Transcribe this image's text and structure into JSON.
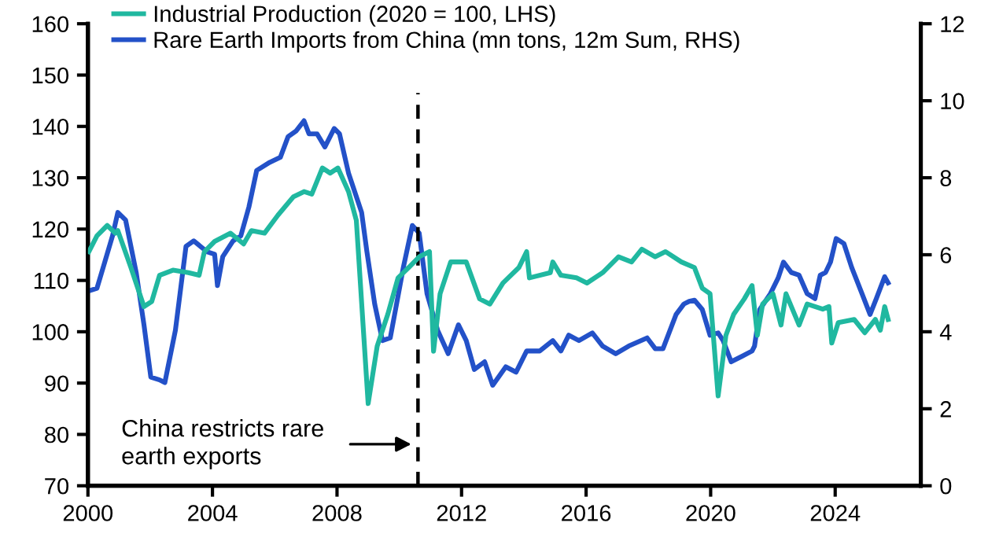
{
  "chart_data": {
    "type": "line",
    "legend": "top left",
    "grid": false,
    "line_style": "solid",
    "marker": "none",
    "xlim": [
      2000,
      2026.75
    ],
    "xticks": [
      2000,
      2004,
      2008,
      2012,
      2016,
      2020,
      2024
    ],
    "ylim": [
      70,
      160
    ],
    "yticks": [
      70,
      80,
      90,
      100,
      110,
      120,
      130,
      140,
      150,
      160
    ],
    "y2lim": [
      0,
      12
    ],
    "y2ticks": [
      0,
      2,
      4,
      6,
      8,
      10,
      12
    ],
    "ref_lines": [
      {
        "axis": "x",
        "value": 2010.6,
        "color": "#000000",
        "line_style": "dashed"
      }
    ],
    "annotations": [
      "China restricts rare\nearth exports"
    ],
    "series": [
      {
        "name": "Industrial Production (2020 = 100, LHS)",
        "color": "#20b8a0",
        "x": [
          2000.03,
          2000.29,
          2000.62,
          2000.88,
          2000.96,
          2001.38,
          2001.8,
          2002.05,
          2002.3,
          2002.73,
          2003.23,
          2003.57,
          2003.74,
          2004.07,
          2004.58,
          2005.0,
          2005.25,
          2005.67,
          2006.1,
          2006.6,
          2006.94,
          2007.19,
          2007.53,
          2007.78,
          2008.03,
          2008.37,
          2008.62,
          2009.0,
          2009.29,
          2009.63,
          2009.96,
          2010.3,
          2010.64,
          2010.97,
          2011.1,
          2011.31,
          2011.65,
          2012.15,
          2012.58,
          2012.91,
          2013.33,
          2013.84,
          2014.09,
          2014.18,
          2014.85,
          2014.93,
          2015.19,
          2015.69,
          2016.03,
          2016.53,
          2017.04,
          2017.46,
          2017.79,
          2018.22,
          2018.55,
          2019.06,
          2019.48,
          2019.73,
          2019.98,
          2020.24,
          2020.49,
          2020.74,
          2021.08,
          2021.33,
          2021.5,
          2021.67,
          2022.0,
          2022.26,
          2022.42,
          2022.84,
          2023.1,
          2023.6,
          2023.8,
          2023.89,
          2024.1,
          2024.61,
          2024.95,
          2025.29,
          2025.45,
          2025.59,
          2025.7
        ],
        "values": [
          115.6,
          118.7,
          120.7,
          119.2,
          119.7,
          112.5,
          104.9,
          105.9,
          111,
          112,
          111.5,
          111,
          115.6,
          117.6,
          119.2,
          117.1,
          119.7,
          119.2,
          122.7,
          126.3,
          127.3,
          126.8,
          131.9,
          130.9,
          131.9,
          127.3,
          121.7,
          86,
          97.2,
          103.4,
          110.5,
          112.5,
          114.6,
          115.6,
          96.2,
          107.4,
          113.6,
          113.6,
          106.4,
          105.4,
          109.5,
          112.5,
          115.6,
          110.5,
          111.5,
          113.6,
          111,
          110.5,
          109.5,
          111.5,
          114.6,
          113.6,
          116.1,
          114.6,
          115.6,
          113.6,
          112.5,
          108.5,
          107.4,
          87.5,
          99.3,
          103.4,
          106.4,
          109,
          99.3,
          105.4,
          107.4,
          101.3,
          107.4,
          101.3,
          105.4,
          104.4,
          104.9,
          97.8,
          101.8,
          102.4,
          99.8,
          102.4,
          100.3,
          104.9,
          102.4
        ]
      },
      {
        "name": "Rare Earth Imports from China (mn tons, 12m Sum, RHS)",
        "color": "#2351c8",
        "axis": "y2",
        "x": [
          2000.03,
          2000.29,
          2000.54,
          2000.79,
          2000.96,
          2001.21,
          2001.55,
          2001.8,
          2002.02,
          2002.3,
          2002.47,
          2002.81,
          2003.15,
          2003.4,
          2003.82,
          2004.07,
          2004.16,
          2004.33,
          2004.66,
          2004.91,
          2005.17,
          2005.42,
          2005.84,
          2006.18,
          2006.43,
          2006.68,
          2006.94,
          2007.1,
          2007.36,
          2007.61,
          2007.91,
          2008.08,
          2008.37,
          2008.79,
          2008.96,
          2009.21,
          2009.46,
          2009.71,
          2009.88,
          2010.13,
          2010.42,
          2010.64,
          2010.89,
          2011.23,
          2011.57,
          2011.9,
          2012.15,
          2012.41,
          2012.74,
          2013.0,
          2013.42,
          2013.75,
          2014.09,
          2014.51,
          2014.93,
          2015.19,
          2015.44,
          2015.77,
          2016.2,
          2016.53,
          2016.95,
          2017.37,
          2017.96,
          2018.22,
          2018.47,
          2018.89,
          2019.14,
          2019.31,
          2019.48,
          2019.73,
          2019.98,
          2020.24,
          2020.4,
          2020.66,
          2021.0,
          2021.33,
          2021.41,
          2021.58,
          2021.92,
          2022.17,
          2022.34,
          2022.59,
          2022.84,
          2023.1,
          2023.35,
          2023.52,
          2023.69,
          2023.85,
          2024.03,
          2024.28,
          2024.53,
          2024.86,
          2025.12,
          2025.32,
          2025.59,
          2025.7
        ],
        "values": [
          5.06,
          5.13,
          5.81,
          6.49,
          7.1,
          6.9,
          5.54,
          4.18,
          2.82,
          2.75,
          2.68,
          4.04,
          6.22,
          6.36,
          6.08,
          6.01,
          5.2,
          5.95,
          6.36,
          6.49,
          7.24,
          8.19,
          8.4,
          8.53,
          9.07,
          9.21,
          9.48,
          9.14,
          9.14,
          8.8,
          9.28,
          9.14,
          8.12,
          7.1,
          6.08,
          4.72,
          3.77,
          3.84,
          4.58,
          5.67,
          6.76,
          6.56,
          4.99,
          4.04,
          3.43,
          4.18,
          3.77,
          3.02,
          3.22,
          2.61,
          3.09,
          2.95,
          3.5,
          3.5,
          3.77,
          3.5,
          3.91,
          3.77,
          3.97,
          3.63,
          3.43,
          3.63,
          3.84,
          3.56,
          3.56,
          4.45,
          4.72,
          4.79,
          4.82,
          4.58,
          3.91,
          3.97,
          3.77,
          3.22,
          3.36,
          3.5,
          3.63,
          4.58,
          4.99,
          5.4,
          5.81,
          5.54,
          5.47,
          4.99,
          4.86,
          5.47,
          5.54,
          5.81,
          6.42,
          6.29,
          5.67,
          4.99,
          4.45,
          4.86,
          5.43,
          5.27
        ]
      }
    ]
  }
}
